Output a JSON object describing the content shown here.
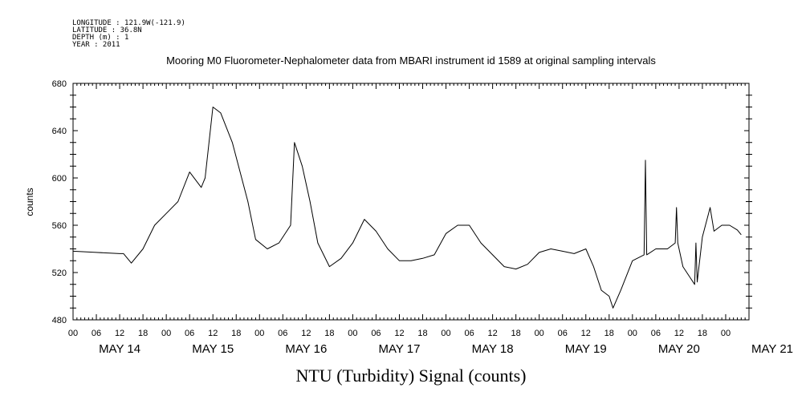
{
  "meta": {
    "longitude": "LONGITUDE : 121.9W(-121.9)",
    "latitude": "LATITUDE : 36.8N",
    "depth": "DEPTH (m) : 1",
    "year": "YEAR : 2011"
  },
  "chart_data": {
    "type": "line",
    "title": "Mooring M0 Fluorometer-Nephalometer data from MBARI instrument id 1589 at original sampling intervals",
    "xlabel": "NTU (Turbidity) Signal (counts)",
    "ylabel": "counts",
    "ylim": [
      480,
      680
    ],
    "yticks": [
      480,
      520,
      560,
      600,
      640,
      680
    ],
    "xlim": [
      "2011-05-14 00:00",
      "2011-05-21 06:00"
    ],
    "hour_ticks": [
      "00",
      "06",
      "12",
      "18",
      "00",
      "06",
      "12",
      "18",
      "00",
      "06",
      "12",
      "18",
      "00",
      "06",
      "12",
      "18",
      "00",
      "06",
      "12",
      "18",
      "00",
      "06",
      "12",
      "18",
      "00",
      "06",
      "12",
      "18",
      "00"
    ],
    "day_labels": [
      "MAY 14",
      "MAY 15",
      "MAY 16",
      "MAY 17",
      "MAY 18",
      "MAY 19",
      "MAY 20",
      "MAY 21"
    ],
    "grid": false,
    "series": [
      {
        "color": "#000000",
        "x": [
          "2011-05-14 00:00",
          "2011-05-14 06:00",
          "2011-05-14 12:00",
          "2011-05-14 13:00",
          "2011-05-14 15:00",
          "2011-05-14 18:00",
          "2011-05-14 21:00",
          "2011-05-15 00:00",
          "2011-05-15 03:00",
          "2011-05-15 06:00",
          "2011-05-15 09:00",
          "2011-05-15 10:00",
          "2011-05-15 12:00",
          "2011-05-15 14:00",
          "2011-05-15 17:00",
          "2011-05-15 21:00",
          "2011-05-15 23:00",
          "2011-05-16 02:00",
          "2011-05-16 05:00",
          "2011-05-16 08:00",
          "2011-05-16 09:00",
          "2011-05-16 11:00",
          "2011-05-16 13:00",
          "2011-05-16 15:00",
          "2011-05-16 18:00",
          "2011-05-16 21:00",
          "2011-05-17 00:00",
          "2011-05-17 03:00",
          "2011-05-17 06:00",
          "2011-05-17 09:00",
          "2011-05-17 12:00",
          "2011-05-17 15:00",
          "2011-05-17 18:00",
          "2011-05-17 21:00",
          "2011-05-18 00:00",
          "2011-05-18 03:00",
          "2011-05-18 06:00",
          "2011-05-18 09:00",
          "2011-05-18 12:00",
          "2011-05-18 15:00",
          "2011-05-18 18:00",
          "2011-05-18 21:00",
          "2011-05-19 00:00",
          "2011-05-19 03:00",
          "2011-05-19 06:00",
          "2011-05-19 09:00",
          "2011-05-19 12:00",
          "2011-05-19 14:00",
          "2011-05-19 16:00",
          "2011-05-19 18:00",
          "2011-05-19 19:00",
          "2011-05-19 21:00",
          "2011-05-20 00:00",
          "2011-05-20 03:00",
          "2011-05-20 03:20",
          "2011-05-20 03:40",
          "2011-05-20 06:00",
          "2011-05-20 09:00",
          "2011-05-20 11:00",
          "2011-05-20 11:20",
          "2011-05-20 11:40",
          "2011-05-20 13:00",
          "2011-05-20 15:00",
          "2011-05-20 16:00",
          "2011-05-20 16:20",
          "2011-05-20 16:40",
          "2011-05-20 18:00",
          "2011-05-20 20:00",
          "2011-05-20 21:00",
          "2011-05-20 23:00",
          "2011-05-21 01:00",
          "2011-05-21 03:00",
          "2011-05-21 04:00"
        ],
        "y": [
          538,
          537,
          536,
          536,
          528,
          540,
          560,
          570,
          580,
          605,
          592,
          600,
          660,
          655,
          630,
          580,
          548,
          540,
          545,
          560,
          630,
          610,
          580,
          545,
          525,
          532,
          545,
          565,
          555,
          540,
          530,
          530,
          532,
          535,
          553,
          560,
          560,
          545,
          535,
          525,
          523,
          527,
          537,
          540,
          538,
          536,
          540,
          525,
          505,
          500,
          490,
          505,
          530,
          535,
          615,
          535,
          540,
          540,
          545,
          575,
          545,
          525,
          515,
          510,
          545,
          512,
          550,
          575,
          555,
          560,
          560,
          556,
          552
        ]
      }
    ]
  }
}
